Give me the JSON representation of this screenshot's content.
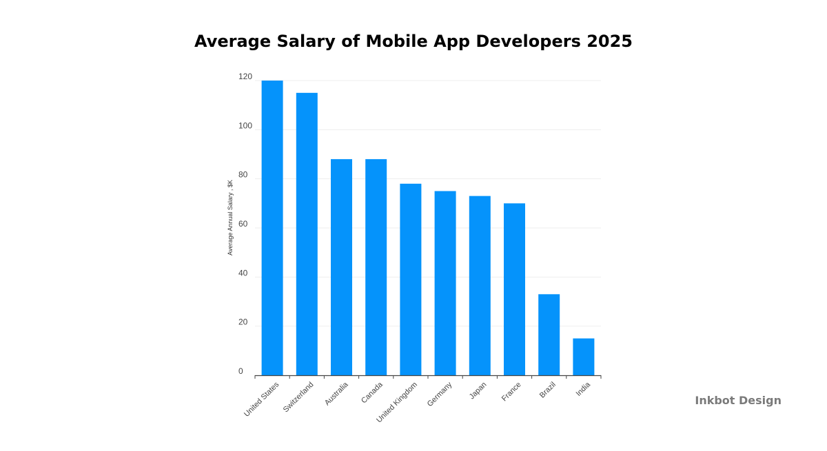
{
  "chart_data": {
    "type": "bar",
    "title": "Average Salary of Mobile App Developers 2025",
    "xlabel": "",
    "ylabel": "Average Annual Salary , $K",
    "categories": [
      "United States",
      "Switzerland",
      "Australia",
      "Canada",
      "United Kingdom",
      "Germany",
      "Japan",
      "France",
      "Brazil",
      "India"
    ],
    "values": [
      120,
      115,
      88,
      88,
      78,
      75,
      73,
      70,
      33,
      15
    ],
    "ylim": [
      0,
      120
    ],
    "yticks": [
      0,
      20,
      40,
      60,
      80,
      100,
      120
    ],
    "grid": true,
    "legend": "none",
    "bar_color": "#0593fb"
  },
  "watermark": "Inkbot Design",
  "colors": {
    "bar": "#0593fb",
    "grid": "#eeeeee",
    "axis": "#444444",
    "watermark": "#7a7a7a"
  }
}
